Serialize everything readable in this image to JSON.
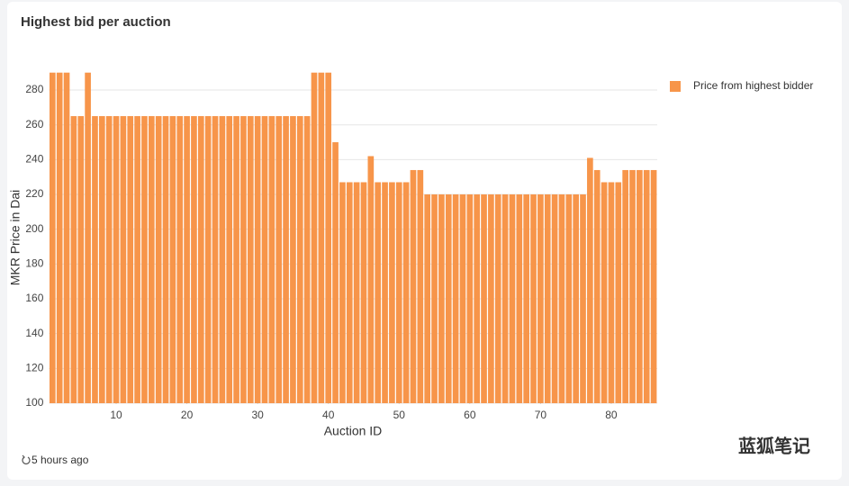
{
  "card_title": "Highest bid per auction",
  "updated": "5 hours ago",
  "watermark": "蓝狐笔记",
  "chart_data": {
    "type": "bar",
    "x_label": "Auction ID",
    "y_label": "MKR Price in Dai",
    "x": [
      1,
      2,
      3,
      4,
      5,
      6,
      7,
      8,
      9,
      10,
      11,
      12,
      13,
      14,
      15,
      16,
      17,
      18,
      19,
      20,
      21,
      22,
      23,
      24,
      25,
      26,
      27,
      28,
      29,
      30,
      31,
      32,
      33,
      34,
      35,
      36,
      37,
      38,
      39,
      40,
      41,
      42,
      43,
      44,
      45,
      46,
      47,
      48,
      49,
      50,
      51,
      52,
      53,
      54,
      55,
      56,
      57,
      58,
      59,
      60,
      61,
      62,
      63,
      64,
      65,
      66,
      67,
      68,
      69,
      70,
      71,
      72,
      73,
      74,
      75,
      76,
      77,
      78,
      79,
      80,
      81,
      82,
      83,
      84,
      85,
      86
    ],
    "series": [
      {
        "name": "Price from highest bidder",
        "color": "#f7954a",
        "values": [
          290,
          290,
          290,
          265,
          265,
          290,
          265,
          265,
          265,
          265,
          265,
          265,
          265,
          265,
          265,
          265,
          265,
          265,
          265,
          265,
          265,
          265,
          265,
          265,
          265,
          265,
          265,
          265,
          265,
          265,
          265,
          265,
          265,
          265,
          265,
          265,
          265,
          290,
          290,
          290,
          250,
          227,
          227,
          227,
          227,
          242,
          227,
          227,
          227,
          227,
          227,
          234,
          234,
          220,
          220,
          220,
          220,
          220,
          220,
          220,
          220,
          220,
          220,
          220,
          220,
          220,
          220,
          220,
          220,
          220,
          220,
          220,
          220,
          220,
          220,
          220,
          241,
          234,
          227,
          227,
          227,
          234,
          234,
          234,
          234,
          234
        ]
      }
    ],
    "xlim": [
      0.5,
      86.5
    ],
    "xticks": [
      10,
      20,
      30,
      40,
      50,
      60,
      70,
      80
    ],
    "ylim": [
      100,
      290
    ],
    "yticks": [
      100,
      120,
      140,
      160,
      180,
      200,
      220,
      240,
      260,
      280
    ],
    "grid": true,
    "legend": "right"
  }
}
